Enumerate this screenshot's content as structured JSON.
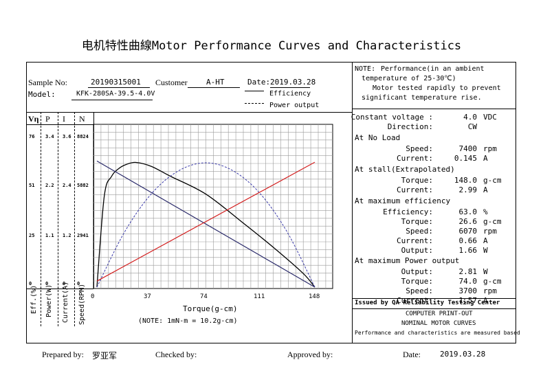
{
  "title": "电机特性曲線Motor Performance Curves and Characteristics",
  "header": {
    "sample_label": "Sample No:",
    "sample_value": "20190315001",
    "customer_label": "Customer",
    "customer_value": "A-HT",
    "date_label": "Date:",
    "date_value": "2019.03.28",
    "model_label": "Model:",
    "model_value": "KFK-280SA-39.5-4.0V",
    "legend_efficiency": "Efficiency",
    "legend_power": "Power output"
  },
  "note": {
    "label": "NOTE:",
    "lines": [
      "Performance(in an ambient",
      "temperature of 25-30℃)",
      "Motor tested rapidly to prevent",
      "significant temperature rise."
    ]
  },
  "axes": {
    "col_headers": [
      "Vη",
      "P",
      "I",
      "N"
    ],
    "col_ticks": [
      [
        "76",
        "51",
        "25",
        "0"
      ],
      [
        "3.4",
        "2.2",
        "1.1",
        "0"
      ],
      [
        "3.6",
        "2.4",
        "1.2",
        "0"
      ],
      [
        "8824",
        "5882",
        "2941",
        "0"
      ]
    ],
    "rot_labels": [
      "Eff.(%)",
      "Power(W)",
      "Current(A)",
      "Speed(RPM)"
    ],
    "x_ticks": [
      "0",
      "37",
      "74",
      "111",
      "148"
    ],
    "x_label": "Torque(g-cm)",
    "note": "(NOTE: 1mN-m = 10.2g-cm)"
  },
  "chart_data": {
    "type": "line",
    "x_label": "Torque(g-cm)",
    "xlim": [
      0,
      148
    ],
    "series": [
      {
        "name": "Efficiency",
        "x": [
          0,
          5,
          10,
          15,
          20,
          26.6,
          37,
          50,
          74,
          100,
          120,
          140,
          148
        ],
        "y": [
          0,
          46,
          56,
          60,
          62,
          63,
          61,
          56,
          47,
          32,
          20,
          7,
          0
        ]
      },
      {
        "name": "Power output",
        "x": [
          0,
          18.5,
          37,
          55.5,
          74,
          92.5,
          111,
          129.5,
          148
        ],
        "y": [
          0,
          1.23,
          2.11,
          2.63,
          2.81,
          2.63,
          2.11,
          1.23,
          0
        ]
      },
      {
        "x": [
          0,
          148
        ],
        "y": [
          7400,
          0
        ]
      },
      {
        "x": [
          0,
          148
        ],
        "y": [
          0.145,
          2.99
        ]
      }
    ]
  },
  "right": {
    "rows": [
      {
        "label": "Constant voltage :",
        "value": "4.0",
        "unit": "VDC"
      },
      {
        "label": "Direction:",
        "value": "CW",
        "unit": ""
      }
    ],
    "no_load_title": "At No Load",
    "no_load": [
      {
        "label": "Speed:",
        "value": "7400",
        "unit": "rpm"
      },
      {
        "label": "Current:",
        "value": "0.145",
        "unit": "A"
      }
    ],
    "stall_title": "At stall(Extrapolated)",
    "stall": [
      {
        "label": "Torque:",
        "value": "148.0",
        "unit": "g-cm"
      },
      {
        "label": "Current:",
        "value": "2.99",
        "unit": "A"
      }
    ],
    "max_eff_title": "At maximum efficiency",
    "max_eff": [
      {
        "label": "Efficiency:",
        "value": "63.0",
        "unit": "%"
      },
      {
        "label": "Torque:",
        "value": "26.6",
        "unit": "g-cm"
      },
      {
        "label": "Speed:",
        "value": "6070",
        "unit": "rpm"
      },
      {
        "label": "Current:",
        "value": "0.66",
        "unit": "A"
      },
      {
        "label": "Output:",
        "value": "1.66",
        "unit": "W"
      }
    ],
    "max_power_title": "At maximum Power output",
    "max_power": [
      {
        "label": "Output:",
        "value": "2.81",
        "unit": "W"
      },
      {
        "label": "Torque:",
        "value": "74.0",
        "unit": "g-cm"
      },
      {
        "label": "Speed:",
        "value": "3700",
        "unit": "rpm"
      },
      {
        "label": "Current:",
        "value": "1.57",
        "unit": "A"
      }
    ],
    "issued": "Issued by QA Reliability Testing Center",
    "printout": [
      "COMPUTER PRINT-OUT",
      "NOMINAL MOTOR CURVES",
      "Performance and characteristics are measured based"
    ]
  },
  "footer": {
    "prepared_label": "Prepared by:",
    "prepared_value": "罗亚军",
    "checked_label": "Checked by:",
    "approved_label": "Approved by:",
    "date_label": "Date:",
    "date_value": "2019.03.28"
  }
}
